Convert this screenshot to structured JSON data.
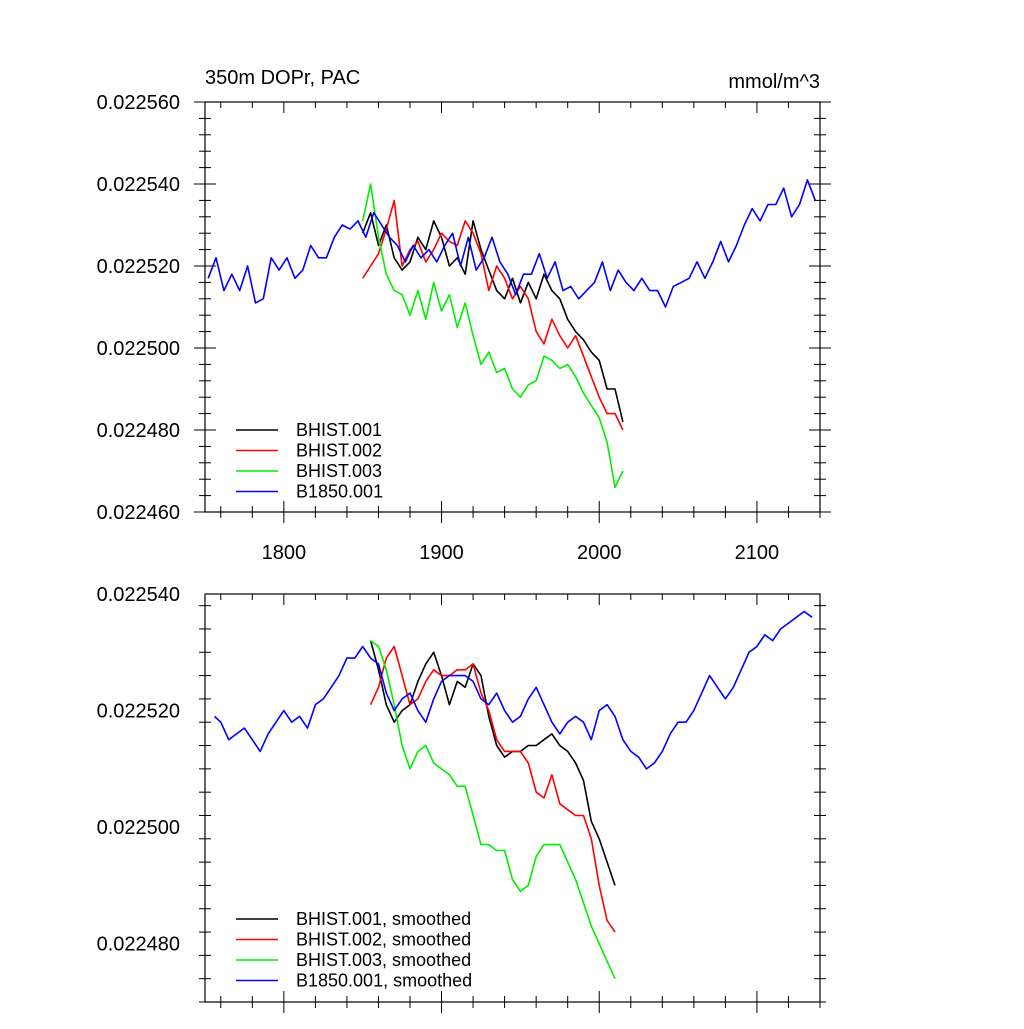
{
  "chart_data": [
    {
      "type": "line",
      "title": "350m DOPr, PAC",
      "units": "mmol/m^3",
      "xlim": [
        1750,
        2140
      ],
      "ylim": [
        0.02246,
        0.02256
      ],
      "x_ticks": [
        1800,
        1900,
        2000,
        2100
      ],
      "x_tick_labels": [
        "1800",
        "1900",
        "2000",
        "2100"
      ],
      "y_ticks": [
        0.02246,
        0.02248,
        0.0225,
        0.02252,
        0.02254,
        0.02256
      ],
      "y_tick_labels": [
        "0.022460",
        "0.022480",
        "0.022500",
        "0.022520",
        "0.022540",
        "0.022560"
      ],
      "legend_position": "bottom-left",
      "series": [
        {
          "name": "BHIST.001",
          "color": "#000000",
          "x": [
            1850,
            1855,
            1860,
            1865,
            1870,
            1875,
            1880,
            1885,
            1890,
            1895,
            1900,
            1905,
            1910,
            1915,
            1920,
            1925,
            1930,
            1935,
            1940,
            1945,
            1950,
            1955,
            1960,
            1965,
            1970,
            1975,
            1980,
            1985,
            1990,
            1995,
            2000,
            2005,
            2010,
            2015
          ],
          "y": [
            0.022528,
            0.022533,
            0.022525,
            0.02253,
            0.022522,
            0.022519,
            0.022521,
            0.022527,
            0.022524,
            0.022531,
            0.022527,
            0.02252,
            0.022522,
            0.022518,
            0.022531,
            0.022524,
            0.022519,
            0.022514,
            0.022512,
            0.022517,
            0.022511,
            0.022516,
            0.022512,
            0.022518,
            0.022514,
            0.022512,
            0.022507,
            0.022504,
            0.022502,
            0.022499,
            0.022497,
            0.02249,
            0.02249,
            0.022482
          ]
        },
        {
          "name": "BHIST.002",
          "color": "#ff0000",
          "x": [
            1850,
            1855,
            1860,
            1865,
            1870,
            1875,
            1880,
            1885,
            1890,
            1895,
            1900,
            1905,
            1910,
            1915,
            1920,
            1925,
            1930,
            1935,
            1940,
            1945,
            1950,
            1955,
            1960,
            1965,
            1970,
            1975,
            1980,
            1985,
            1990,
            1995,
            2000,
            2005,
            2010,
            2015
          ],
          "y": [
            0.022517,
            0.02252,
            0.022523,
            0.022529,
            0.022536,
            0.02252,
            0.022524,
            0.022526,
            0.022521,
            0.022524,
            0.022528,
            0.022526,
            0.022525,
            0.022531,
            0.022528,
            0.022523,
            0.022514,
            0.02252,
            0.022517,
            0.022512,
            0.022515,
            0.022512,
            0.022504,
            0.022501,
            0.022507,
            0.022503,
            0.0225,
            0.022503,
            0.022498,
            0.022493,
            0.022488,
            0.022484,
            0.022484,
            0.02248
          ]
        },
        {
          "name": "BHIST.003",
          "color": "#00ee00",
          "x": [
            1850,
            1855,
            1860,
            1865,
            1870,
            1875,
            1880,
            1885,
            1890,
            1895,
            1900,
            1905,
            1910,
            1915,
            1920,
            1925,
            1930,
            1935,
            1940,
            1945,
            1950,
            1955,
            1960,
            1965,
            1970,
            1975,
            1980,
            1985,
            1990,
            1995,
            2000,
            2005,
            2010,
            2015
          ],
          "y": [
            0.022531,
            0.02254,
            0.022527,
            0.022518,
            0.022514,
            0.022513,
            0.022508,
            0.022514,
            0.022507,
            0.022516,
            0.022509,
            0.022513,
            0.022505,
            0.022511,
            0.022503,
            0.022496,
            0.022499,
            0.022494,
            0.022495,
            0.02249,
            0.022488,
            0.022491,
            0.022492,
            0.022498,
            0.022497,
            0.022495,
            0.022496,
            0.022493,
            0.022489,
            0.022486,
            0.022483,
            0.022477,
            0.022466,
            0.02247
          ]
        },
        {
          "name": "B1850.001",
          "color": "#0000ff",
          "x": [
            1752,
            1757,
            1762,
            1767,
            1772,
            1777,
            1782,
            1787,
            1792,
            1797,
            1802,
            1807,
            1812,
            1817,
            1822,
            1827,
            1832,
            1837,
            1842,
            1847,
            1852,
            1857,
            1862,
            1867,
            1872,
            1877,
            1882,
            1887,
            1892,
            1897,
            1902,
            1907,
            1912,
            1917,
            1922,
            1927,
            1932,
            1937,
            1942,
            1947,
            1952,
            1957,
            1962,
            1967,
            1972,
            1977,
            1982,
            1987,
            1992,
            1997,
            2002,
            2007,
            2012,
            2017,
            2022,
            2027,
            2032,
            2037,
            2042,
            2047,
            2052,
            2057,
            2062,
            2067,
            2072,
            2077,
            2082,
            2087,
            2092,
            2097,
            2102,
            2107,
            2112,
            2117,
            2122,
            2127,
            2132,
            2137
          ],
          "y": [
            0.022517,
            0.022522,
            0.022514,
            0.022518,
            0.022514,
            0.02252,
            0.022511,
            0.022512,
            0.022522,
            0.022519,
            0.022522,
            0.022517,
            0.022519,
            0.022525,
            0.022522,
            0.022522,
            0.022527,
            0.02253,
            0.022529,
            0.022531,
            0.022527,
            0.022533,
            0.02253,
            0.022527,
            0.022525,
            0.022521,
            0.022525,
            0.022522,
            0.022524,
            0.022521,
            0.022525,
            0.022528,
            0.02252,
            0.022527,
            0.022519,
            0.022522,
            0.022527,
            0.022521,
            0.022518,
            0.022513,
            0.022518,
            0.022518,
            0.022523,
            0.022517,
            0.022521,
            0.022514,
            0.022515,
            0.022512,
            0.022514,
            0.022516,
            0.022521,
            0.022514,
            0.022519,
            0.022516,
            0.022514,
            0.022517,
            0.022514,
            0.022514,
            0.02251,
            0.022515,
            0.022516,
            0.022517,
            0.022521,
            0.022517,
            0.022521,
            0.022526,
            0.022521,
            0.022525,
            0.02253,
            0.022534,
            0.022531,
            0.022535,
            0.022535,
            0.022539,
            0.022532,
            0.022535,
            0.022541,
            0.022536
          ]
        }
      ]
    },
    {
      "type": "line",
      "xlim": [
        1750,
        2140
      ],
      "ylim": [
        0.02247,
        0.02254
      ],
      "x_ticks": [
        1800,
        1900,
        2000,
        2100
      ],
      "y_ticks": [
        0.02248,
        0.0225,
        0.02252,
        0.02254
      ],
      "y_tick_labels": [
        "0.022480",
        "0.022500",
        "0.022520",
        "0.022540"
      ],
      "legend_position": "bottom-left",
      "series": [
        {
          "name": "BHIST.001, smoothed",
          "color": "#000000",
          "x": [
            1855,
            1860,
            1865,
            1870,
            1875,
            1880,
            1885,
            1890,
            1895,
            1900,
            1905,
            1910,
            1915,
            1920,
            1925,
            1930,
            1935,
            1940,
            1945,
            1950,
            1955,
            1960,
            1965,
            1970,
            1975,
            1980,
            1985,
            1990,
            1995,
            2000,
            2005,
            2010
          ],
          "y": [
            0.022532,
            0.022527,
            0.022521,
            0.022518,
            0.02252,
            0.022521,
            0.022525,
            0.022528,
            0.02253,
            0.022526,
            0.022521,
            0.022525,
            0.022524,
            0.022528,
            0.022526,
            0.022519,
            0.022514,
            0.022512,
            0.022513,
            0.022513,
            0.022514,
            0.022514,
            0.022515,
            0.022516,
            0.022514,
            0.022513,
            0.022511,
            0.022508,
            0.022501,
            0.022498,
            0.022494,
            0.02249
          ]
        },
        {
          "name": "BHIST.002, smoothed",
          "color": "#ff0000",
          "x": [
            1855,
            1860,
            1865,
            1870,
            1875,
            1880,
            1885,
            1890,
            1895,
            1900,
            1905,
            1910,
            1915,
            1920,
            1925,
            1930,
            1935,
            1940,
            1945,
            1950,
            1955,
            1960,
            1965,
            1970,
            1975,
            1980,
            1985,
            1990,
            1995,
            2000,
            2005,
            2010
          ],
          "y": [
            0.022521,
            0.022524,
            0.022529,
            0.022531,
            0.022526,
            0.022521,
            0.022522,
            0.022525,
            0.022527,
            0.022526,
            0.022526,
            0.022527,
            0.022527,
            0.022528,
            0.022523,
            0.02252,
            0.022515,
            0.022513,
            0.022513,
            0.022513,
            0.022511,
            0.022506,
            0.022505,
            0.022509,
            0.022504,
            0.022503,
            0.022502,
            0.022502,
            0.022498,
            0.02249,
            0.022484,
            0.022482
          ]
        },
        {
          "name": "BHIST.003, smoothed",
          "color": "#00ee00",
          "x": [
            1855,
            1860,
            1865,
            1870,
            1875,
            1880,
            1885,
            1890,
            1895,
            1900,
            1905,
            1910,
            1915,
            1920,
            1925,
            1930,
            1935,
            1940,
            1945,
            1950,
            1955,
            1960,
            1965,
            1970,
            1975,
            1980,
            1985,
            1990,
            1995,
            2000,
            2005,
            2010
          ],
          "y": [
            0.022532,
            0.022531,
            0.022527,
            0.022521,
            0.022514,
            0.02251,
            0.022513,
            0.022514,
            0.022511,
            0.02251,
            0.022509,
            0.022507,
            0.022507,
            0.022502,
            0.022497,
            0.022497,
            0.022496,
            0.022496,
            0.022491,
            0.022489,
            0.02249,
            0.022495,
            0.022497,
            0.022497,
            0.022497,
            0.022494,
            0.022491,
            0.022487,
            0.022483,
            0.02248,
            0.022477,
            0.022474
          ]
        },
        {
          "name": "B1850.001, smoothed",
          "color": "#0000ff",
          "x": [
            1756,
            1760,
            1765,
            1770,
            1775,
            1780,
            1785,
            1790,
            1795,
            1800,
            1805,
            1810,
            1815,
            1820,
            1825,
            1830,
            1835,
            1840,
            1845,
            1850,
            1855,
            1860,
            1865,
            1870,
            1875,
            1880,
            1885,
            1890,
            1895,
            1900,
            1905,
            1910,
            1915,
            1920,
            1925,
            1930,
            1935,
            1940,
            1945,
            1950,
            1955,
            1960,
            1965,
            1970,
            1975,
            1980,
            1985,
            1990,
            1995,
            2000,
            2005,
            2010,
            2015,
            2020,
            2025,
            2030,
            2035,
            2040,
            2045,
            2050,
            2055,
            2060,
            2065,
            2070,
            2075,
            2080,
            2085,
            2090,
            2095,
            2100,
            2105,
            2110,
            2115,
            2120,
            2125,
            2130,
            2135
          ],
          "y": [
            0.022519,
            0.022518,
            0.022515,
            0.022516,
            0.022517,
            0.022515,
            0.022513,
            0.022516,
            0.022518,
            0.02252,
            0.022518,
            0.022519,
            0.022517,
            0.022521,
            0.022522,
            0.022524,
            0.022526,
            0.022529,
            0.022529,
            0.022531,
            0.022529,
            0.022528,
            0.022523,
            0.02252,
            0.022522,
            0.022523,
            0.02252,
            0.022518,
            0.022522,
            0.022525,
            0.022526,
            0.022526,
            0.022526,
            0.022525,
            0.022522,
            0.022521,
            0.022523,
            0.02252,
            0.022518,
            0.022519,
            0.022522,
            0.022524,
            0.022521,
            0.022518,
            0.022516,
            0.022518,
            0.022519,
            0.022518,
            0.022515,
            0.02252,
            0.022521,
            0.022519,
            0.022515,
            0.022513,
            0.022512,
            0.02251,
            0.022511,
            0.022513,
            0.022516,
            0.022518,
            0.022518,
            0.02252,
            0.022523,
            0.022526,
            0.022524,
            0.022522,
            0.022524,
            0.022527,
            0.02253,
            0.022531,
            0.022533,
            0.022532,
            0.022534,
            0.022535,
            0.022536,
            0.022537,
            0.022536
          ]
        }
      ]
    }
  ]
}
